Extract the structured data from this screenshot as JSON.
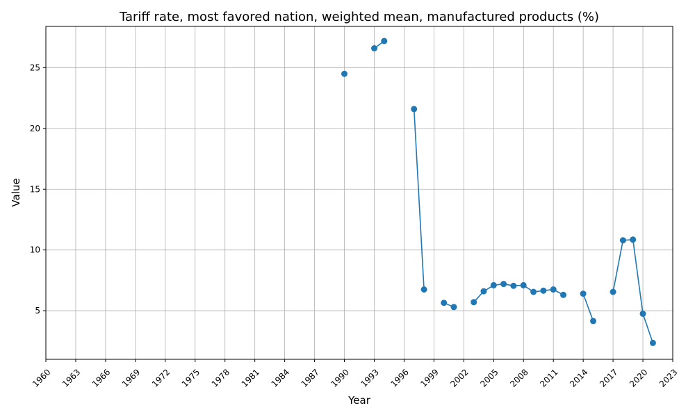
{
  "chart_data": {
    "type": "line",
    "title": "Tariff rate, most favored nation, weighted mean, manufactured products (%)",
    "xlabel": "Year",
    "ylabel": "Value",
    "xlim": [
      1960,
      2023
    ],
    "ylim": [
      1.0,
      28.4
    ],
    "grid": true,
    "xticks": [
      1960,
      1963,
      1966,
      1969,
      1972,
      1975,
      1978,
      1981,
      1984,
      1987,
      1990,
      1993,
      1996,
      1999,
      2002,
      2005,
      2008,
      2011,
      2014,
      2017,
      2020,
      2023
    ],
    "yticks": [
      5,
      10,
      15,
      20,
      25
    ],
    "color": "#1f77b4",
    "series": [
      {
        "x": [
          1990,
          1991,
          1992,
          1993,
          1994,
          1995,
          1996,
          1997,
          1998,
          1999,
          2000,
          2001,
          2002,
          2003,
          2004,
          2005,
          2006,
          2007,
          2008,
          2009,
          2010,
          2011,
          2012,
          2013,
          2014,
          2015,
          2016,
          2017,
          2018,
          2019,
          2020,
          2021
        ],
        "y": [
          24.5,
          null,
          null,
          26.6,
          27.2,
          null,
          null,
          21.6,
          6.75,
          null,
          5.65,
          5.3,
          null,
          5.7,
          6.6,
          7.1,
          7.2,
          7.05,
          7.1,
          6.55,
          6.65,
          6.75,
          6.3,
          null,
          6.4,
          4.15,
          null,
          6.55,
          10.8,
          10.85,
          4.75,
          2.35
        ]
      }
    ]
  }
}
